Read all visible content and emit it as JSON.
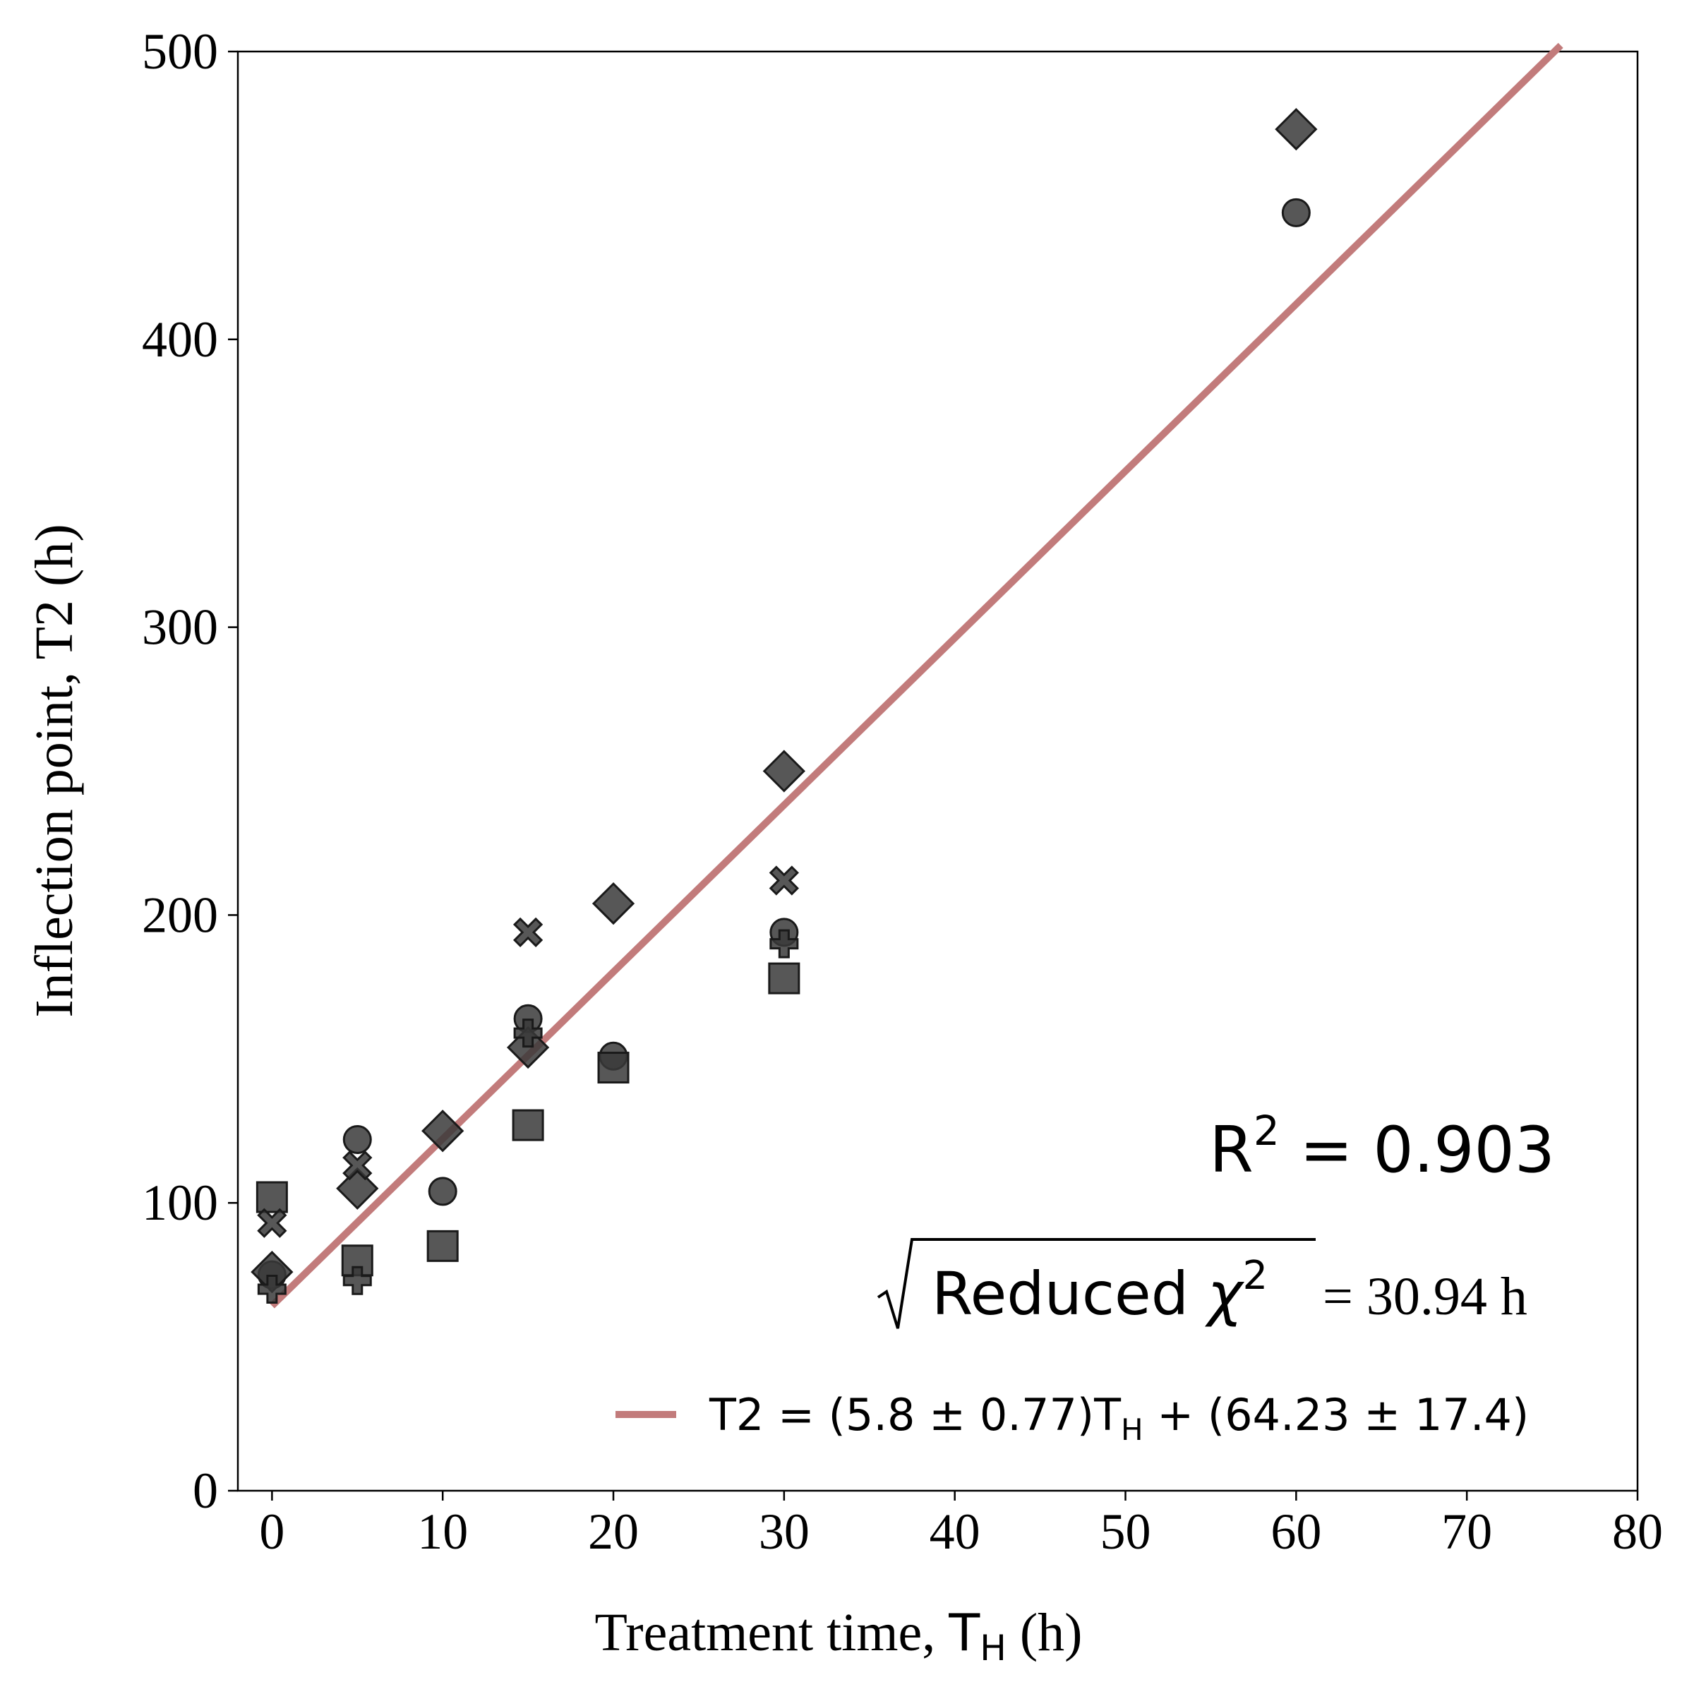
{
  "chart_data": {
    "type": "scatter",
    "xlabel": {
      "text": "Treatment time, ",
      "math": "T",
      "math_sub": "H",
      "unit": " (h)"
    },
    "ylabel": "Inflection point, T2 (h)",
    "xlim": [
      -2,
      80
    ],
    "ylim": [
      0,
      500
    ],
    "xticks": [
      0,
      10,
      20,
      30,
      40,
      50,
      60,
      70,
      80
    ],
    "yticks": [
      0,
      100,
      200,
      300,
      400,
      500
    ],
    "xtick_labels": [
      "0",
      "10",
      "20",
      "30",
      "40",
      "50",
      "60",
      "70",
      "80"
    ],
    "ytick_labels": [
      "0",
      "100",
      "200",
      "300",
      "400",
      "500"
    ],
    "grid": false,
    "marker_color": "#3a3a3a",
    "fit_color": "#c27b7b",
    "series": [
      {
        "marker": "circle",
        "x": [
          0,
          5,
          10,
          15,
          20,
          30,
          60
        ],
        "y": [
          75,
          122,
          104,
          164,
          151,
          194,
          444
        ]
      },
      {
        "marker": "square",
        "x": [
          0,
          5,
          10,
          15,
          20,
          30
        ],
        "y": [
          102,
          80,
          85,
          127,
          147,
          178
        ]
      },
      {
        "marker": "diamond",
        "x": [
          0,
          5,
          10,
          15,
          20,
          30,
          60
        ],
        "y": [
          76,
          105,
          125,
          154,
          204,
          250,
          473
        ]
      },
      {
        "marker": "x",
        "x": [
          0,
          5,
          15,
          30
        ],
        "y": [
          93,
          113,
          194,
          212
        ]
      },
      {
        "marker": "plus",
        "x": [
          0,
          5,
          15,
          30
        ],
        "y": [
          70,
          73,
          159,
          190
        ]
      }
    ],
    "fit": {
      "slope": 5.8,
      "intercept": 64.23,
      "x_range": [
        0,
        75.5
      ]
    },
    "legend": {
      "position": "lower-right",
      "label_prefix": "T2 = (5.8 ± 0.77)T",
      "label_sub": "H",
      "label_suffix": " + (64.23 ± 17.4)"
    },
    "annotations": {
      "r2_label": "R",
      "r2_sup": "2",
      "r2_value": " = 0.903",
      "chi_label": "Reduced ",
      "chi_symbol": "χ",
      "chi_sup": "2",
      "chi_value": " = 30.94 h"
    }
  }
}
